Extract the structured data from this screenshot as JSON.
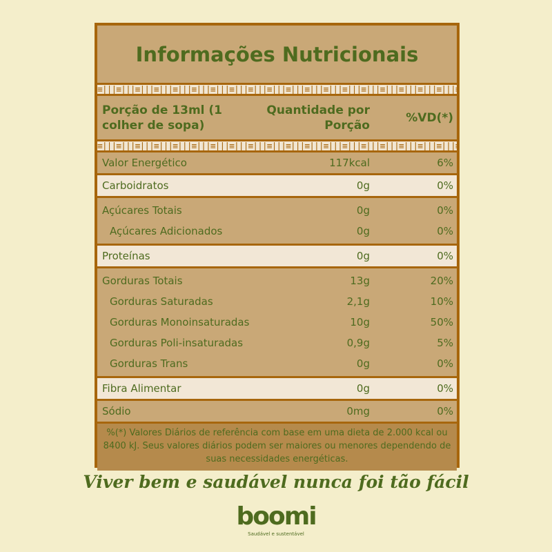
{
  "title": "Informações Nutricionais",
  "pattern": "≡|||≡|||≡|||≡|||≡|||≡|||≡|||≡|||≡|||≡|||≡|||≡|||≡|||≡|||≡|||≡|||≡|||≡|||≡|||≡|||≡|||≡|||≡|||≡|||≡|||",
  "header": {
    "portion": "Porção de 13ml (1 colher de sopa)",
    "quantity": "Quantidade por Porção",
    "vd": "%VD(*)"
  },
  "groups": [
    {
      "shade": "tan",
      "rows": [
        {
          "name": "Valor Energético",
          "qty": "117kcal",
          "vd": "6%"
        }
      ]
    },
    {
      "shade": "light",
      "rows": [
        {
          "name": "Carboidratos",
          "qty": "0g",
          "vd": "0%"
        }
      ]
    },
    {
      "shade": "tan",
      "rows": [
        {
          "name": "Açúcares Totais",
          "qty": "0g",
          "vd": "0%"
        },
        {
          "name": "Açúcares Adicionados",
          "qty": "0g",
          "vd": "0%",
          "indent": true
        }
      ]
    },
    {
      "shade": "light",
      "rows": [
        {
          "name": "Proteínas",
          "qty": "0g",
          "vd": "0%"
        }
      ]
    },
    {
      "shade": "tan",
      "rows": [
        {
          "name": "Gorduras Totais",
          "qty": "13g",
          "vd": "20%"
        },
        {
          "name": "Gorduras Saturadas",
          "qty": "2,1g",
          "vd": "10%",
          "indent": true
        },
        {
          "name": "Gorduras Monoinsaturadas",
          "qty": "10g",
          "vd": "50%",
          "indent": true
        },
        {
          "name": "Gorduras Poli-insaturadas",
          "qty": "0,9g",
          "vd": "5%",
          "indent": true
        },
        {
          "name": "Gorduras Trans",
          "qty": "0g",
          "vd": "0%",
          "indent": true
        }
      ]
    },
    {
      "shade": "light",
      "rows": [
        {
          "name": "Fibra Alimentar",
          "qty": "0g",
          "vd": "0%"
        }
      ]
    },
    {
      "shade": "tan",
      "rows": [
        {
          "name": "Sódio",
          "qty": "0mg",
          "vd": "0%"
        }
      ]
    }
  ],
  "footer": "%(*) Valores Diários de referência com base em uma dieta de 2.000 kcal ou 8400 kJ. Seus valores diários podem ser maiores ou menores dependendo de suas necessidades energéticas.",
  "slogan": "Viver bem e saudável nunca foi tão fácil",
  "brand": {
    "logo": "boomi",
    "tagline": "Saudável e sustentável"
  },
  "colors": {
    "text": "#4e6b1f",
    "border": "#a7660c",
    "tan": "#c9a877",
    "light": "#f2e7d6",
    "background": "#f4eecb"
  }
}
